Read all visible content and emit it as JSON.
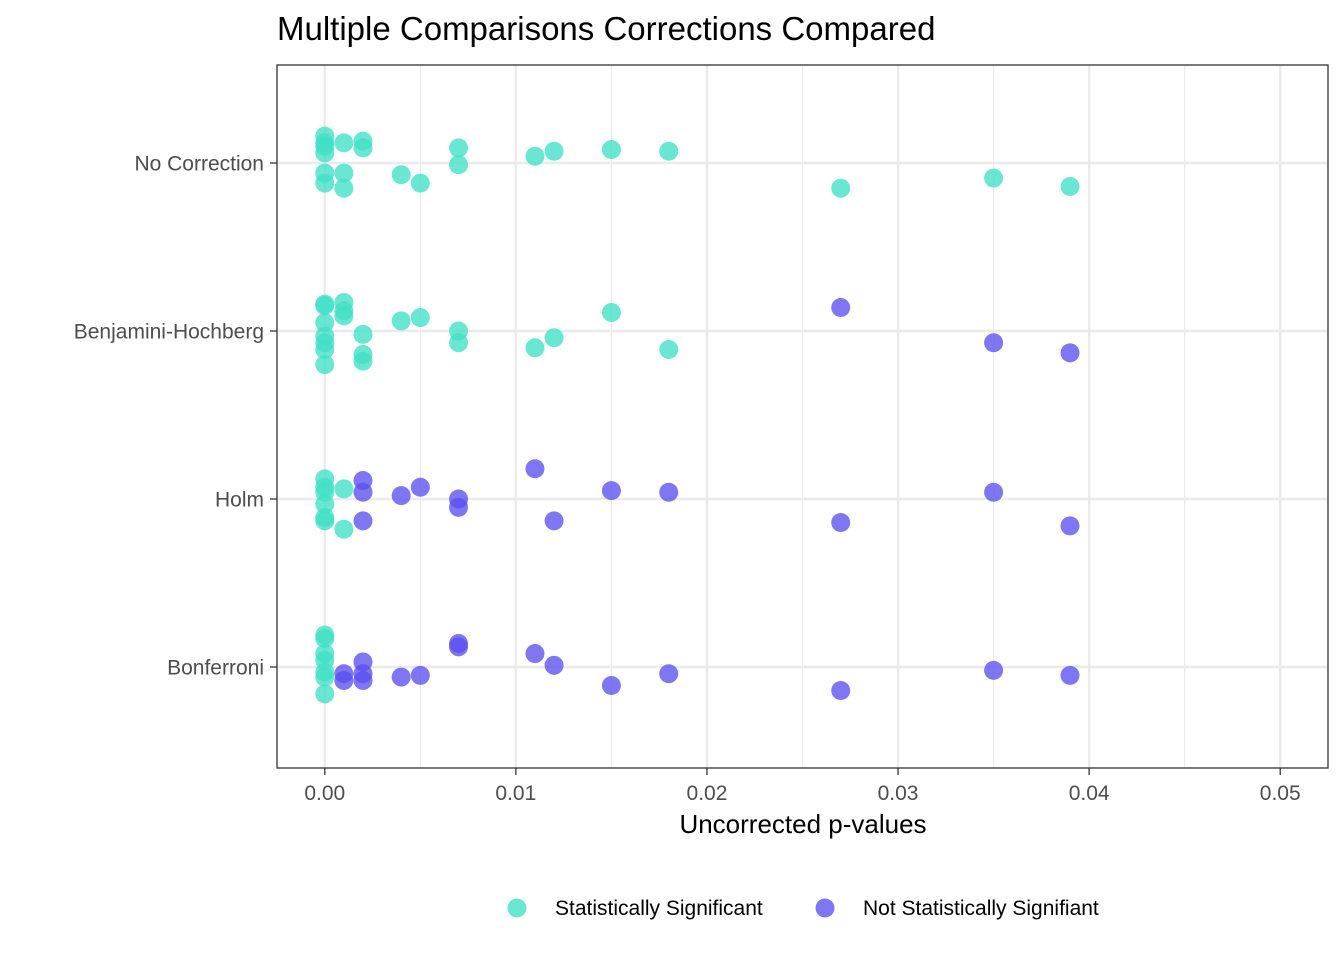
{
  "chart_data": {
    "type": "scatter",
    "title": "Multiple Comparisons Corrections Compared",
    "xlabel": "Uncorrected p-values",
    "ylabel": "",
    "xlim": [
      -0.0025,
      0.0525
    ],
    "x_ticks": [
      0.0,
      0.01,
      0.02,
      0.03,
      0.04,
      0.05
    ],
    "x_tick_labels": [
      "0.00",
      "0.01",
      "0.02",
      "0.03",
      "0.04",
      "0.05"
    ],
    "categories": [
      "No Correction",
      "Benjamini-Hochberg",
      "Holm",
      "Bonferroni"
    ],
    "grid": true,
    "legend_position": "bottom",
    "legend": [
      {
        "key": "sig",
        "label": "Statistically Significant",
        "color": "#40E0C6"
      },
      {
        "key": "notsig",
        "label": "Not Statistically Signifiant",
        "color": "#5A4FF0"
      }
    ],
    "series": [
      {
        "category": "No Correction",
        "points": [
          {
            "x": 0.0,
            "jitter": 0.16,
            "sig": true
          },
          {
            "x": 0.0,
            "jitter": 0.12,
            "sig": true
          },
          {
            "x": 0.0,
            "jitter": 0.1,
            "sig": true
          },
          {
            "x": 0.0,
            "jitter": 0.06,
            "sig": true
          },
          {
            "x": 0.0,
            "jitter": -0.06,
            "sig": true
          },
          {
            "x": 0.0,
            "jitter": -0.12,
            "sig": true
          },
          {
            "x": 0.001,
            "jitter": 0.12,
            "sig": true
          },
          {
            "x": 0.001,
            "jitter": -0.06,
            "sig": true
          },
          {
            "x": 0.001,
            "jitter": -0.15,
            "sig": true
          },
          {
            "x": 0.002,
            "jitter": 0.13,
            "sig": true
          },
          {
            "x": 0.002,
            "jitter": 0.09,
            "sig": true
          },
          {
            "x": 0.004,
            "jitter": -0.07,
            "sig": true
          },
          {
            "x": 0.005,
            "jitter": -0.12,
            "sig": true
          },
          {
            "x": 0.007,
            "jitter": 0.09,
            "sig": true
          },
          {
            "x": 0.007,
            "jitter": -0.01,
            "sig": true
          },
          {
            "x": 0.011,
            "jitter": 0.04,
            "sig": true
          },
          {
            "x": 0.012,
            "jitter": 0.07,
            "sig": true
          },
          {
            "x": 0.015,
            "jitter": 0.08,
            "sig": true
          },
          {
            "x": 0.018,
            "jitter": 0.07,
            "sig": true
          },
          {
            "x": 0.027,
            "jitter": -0.15,
            "sig": true
          },
          {
            "x": 0.035,
            "jitter": -0.09,
            "sig": true
          },
          {
            "x": 0.039,
            "jitter": -0.14,
            "sig": true
          }
        ]
      },
      {
        "category": "Benjamini-Hochberg",
        "points": [
          {
            "x": 0.0,
            "jitter": 0.16,
            "sig": true
          },
          {
            "x": 0.0,
            "jitter": 0.15,
            "sig": true
          },
          {
            "x": 0.0,
            "jitter": 0.05,
            "sig": true
          },
          {
            "x": 0.0,
            "jitter": -0.03,
            "sig": true
          },
          {
            "x": 0.0,
            "jitter": -0.07,
            "sig": true
          },
          {
            "x": 0.0,
            "jitter": -0.11,
            "sig": true
          },
          {
            "x": 0.0,
            "jitter": -0.2,
            "sig": true
          },
          {
            "x": 0.001,
            "jitter": 0.17,
            "sig": true
          },
          {
            "x": 0.001,
            "jitter": 0.12,
            "sig": true
          },
          {
            "x": 0.001,
            "jitter": 0.09,
            "sig": true
          },
          {
            "x": 0.002,
            "jitter": -0.02,
            "sig": true
          },
          {
            "x": 0.002,
            "jitter": -0.14,
            "sig": true
          },
          {
            "x": 0.002,
            "jitter": -0.18,
            "sig": true
          },
          {
            "x": 0.004,
            "jitter": 0.06,
            "sig": true
          },
          {
            "x": 0.005,
            "jitter": 0.08,
            "sig": true
          },
          {
            "x": 0.007,
            "jitter": 0.0,
            "sig": true
          },
          {
            "x": 0.007,
            "jitter": -0.07,
            "sig": true
          },
          {
            "x": 0.011,
            "jitter": -0.1,
            "sig": true
          },
          {
            "x": 0.012,
            "jitter": -0.04,
            "sig": true
          },
          {
            "x": 0.015,
            "jitter": 0.11,
            "sig": true
          },
          {
            "x": 0.018,
            "jitter": -0.11,
            "sig": true
          },
          {
            "x": 0.027,
            "jitter": 0.14,
            "sig": false
          },
          {
            "x": 0.035,
            "jitter": -0.07,
            "sig": false
          },
          {
            "x": 0.039,
            "jitter": -0.13,
            "sig": false
          }
        ]
      },
      {
        "category": "Holm",
        "points": [
          {
            "x": 0.0,
            "jitter": 0.12,
            "sig": true
          },
          {
            "x": 0.0,
            "jitter": 0.07,
            "sig": true
          },
          {
            "x": 0.0,
            "jitter": 0.04,
            "sig": true
          },
          {
            "x": 0.0,
            "jitter": -0.03,
            "sig": true
          },
          {
            "x": 0.0,
            "jitter": -0.11,
            "sig": true
          },
          {
            "x": 0.0,
            "jitter": -0.13,
            "sig": true
          },
          {
            "x": 0.001,
            "jitter": 0.06,
            "sig": true
          },
          {
            "x": 0.001,
            "jitter": -0.18,
            "sig": true
          },
          {
            "x": 0.002,
            "jitter": 0.11,
            "sig": false
          },
          {
            "x": 0.002,
            "jitter": 0.04,
            "sig": false
          },
          {
            "x": 0.002,
            "jitter": -0.13,
            "sig": false
          },
          {
            "x": 0.004,
            "jitter": 0.02,
            "sig": false
          },
          {
            "x": 0.005,
            "jitter": 0.07,
            "sig": false
          },
          {
            "x": 0.007,
            "jitter": 0.0,
            "sig": false
          },
          {
            "x": 0.007,
            "jitter": -0.05,
            "sig": false
          },
          {
            "x": 0.011,
            "jitter": 0.18,
            "sig": false
          },
          {
            "x": 0.012,
            "jitter": -0.13,
            "sig": false
          },
          {
            "x": 0.015,
            "jitter": 0.05,
            "sig": false
          },
          {
            "x": 0.018,
            "jitter": 0.04,
            "sig": false
          },
          {
            "x": 0.027,
            "jitter": -0.14,
            "sig": false
          },
          {
            "x": 0.035,
            "jitter": 0.04,
            "sig": false
          },
          {
            "x": 0.039,
            "jitter": -0.16,
            "sig": false
          }
        ]
      },
      {
        "category": "Bonferroni",
        "points": [
          {
            "x": 0.0,
            "jitter": 0.19,
            "sig": true
          },
          {
            "x": 0.0,
            "jitter": 0.17,
            "sig": true
          },
          {
            "x": 0.0,
            "jitter": 0.08,
            "sig": true
          },
          {
            "x": 0.0,
            "jitter": 0.04,
            "sig": true
          },
          {
            "x": 0.0,
            "jitter": -0.03,
            "sig": true
          },
          {
            "x": 0.0,
            "jitter": -0.06,
            "sig": true
          },
          {
            "x": 0.0,
            "jitter": -0.16,
            "sig": true
          },
          {
            "x": 0.001,
            "jitter": -0.04,
            "sig": false
          },
          {
            "x": 0.001,
            "jitter": -0.08,
            "sig": false
          },
          {
            "x": 0.002,
            "jitter": 0.03,
            "sig": false
          },
          {
            "x": 0.002,
            "jitter": -0.04,
            "sig": false
          },
          {
            "x": 0.002,
            "jitter": -0.08,
            "sig": false
          },
          {
            "x": 0.004,
            "jitter": -0.06,
            "sig": false
          },
          {
            "x": 0.005,
            "jitter": -0.05,
            "sig": false
          },
          {
            "x": 0.007,
            "jitter": 0.14,
            "sig": false
          },
          {
            "x": 0.007,
            "jitter": 0.12,
            "sig": false
          },
          {
            "x": 0.011,
            "jitter": 0.08,
            "sig": false
          },
          {
            "x": 0.012,
            "jitter": 0.01,
            "sig": false
          },
          {
            "x": 0.015,
            "jitter": -0.11,
            "sig": false
          },
          {
            "x": 0.018,
            "jitter": -0.04,
            "sig": false
          },
          {
            "x": 0.027,
            "jitter": -0.14,
            "sig": false
          },
          {
            "x": 0.035,
            "jitter": -0.02,
            "sig": false
          },
          {
            "x": 0.039,
            "jitter": -0.05,
            "sig": false
          }
        ]
      }
    ]
  }
}
